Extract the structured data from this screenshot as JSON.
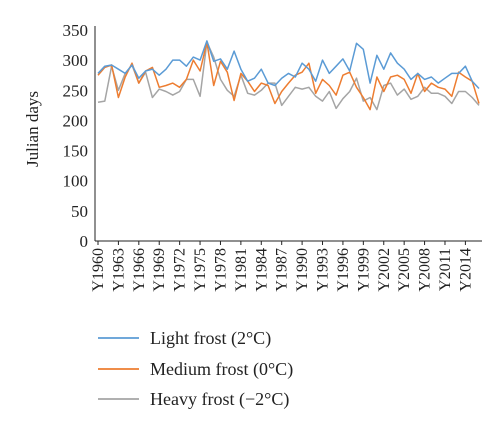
{
  "chart_data": {
    "type": "line",
    "title": "",
    "xlabel": "",
    "ylabel": "Julian days",
    "ylim": [
      0,
      350
    ],
    "yticks": [
      0,
      50,
      100,
      150,
      200,
      250,
      300,
      350
    ],
    "x": [
      "Y1960",
      "Y1961",
      "Y1962",
      "Y1963",
      "Y1964",
      "Y1965",
      "Y1966",
      "Y1967",
      "Y1968",
      "Y1969",
      "Y1970",
      "Y1971",
      "Y1972",
      "Y1973",
      "Y1974",
      "Y1975",
      "Y1976",
      "Y1977",
      "Y1978",
      "Y1979",
      "Y1980",
      "Y1981",
      "Y1982",
      "Y1983",
      "Y1984",
      "Y1985",
      "Y1986",
      "Y1987",
      "Y1988",
      "Y1989",
      "Y1990",
      "Y1991",
      "Y1992",
      "Y1993",
      "Y1994",
      "Y1995",
      "Y1996",
      "Y1997",
      "Y1998",
      "Y1999",
      "Y2000",
      "Y2001",
      "Y2002",
      "Y2003",
      "Y2004",
      "Y2005",
      "Y2006",
      "Y2007",
      "Y2008",
      "Y2009",
      "Y2010",
      "Y2011",
      "Y2012",
      "Y2013",
      "Y2014",
      "Y2015",
      "Y2016"
    ],
    "xtick_labels": [
      "Y1960",
      "Y1963",
      "Y1966",
      "Y1969",
      "Y1972",
      "Y1975",
      "Y1978",
      "Y1981",
      "Y1984",
      "Y1987",
      "Y1990",
      "Y1993",
      "Y1996",
      "Y1999",
      "Y2002",
      "Y2005",
      "Y2008",
      "Y2011",
      "Y2014"
    ],
    "grid": false,
    "legend_position": "bottom",
    "series": [
      {
        "name": "Light frost (2°C)",
        "color": "#5b9bd5",
        "values": [
          278,
          290,
          292,
          285,
          278,
          292,
          270,
          282,
          285,
          275,
          285,
          300,
          300,
          290,
          305,
          300,
          332,
          298,
          302,
          285,
          315,
          285,
          265,
          270,
          285,
          262,
          258,
          270,
          278,
          272,
          295,
          285,
          265,
          300,
          278,
          290,
          302,
          282,
          328,
          318,
          262,
          308,
          285,
          312,
          295,
          285,
          268,
          278,
          268,
          272,
          262,
          270,
          278,
          278,
          290,
          265,
          253
        ]
      },
      {
        "name": "Medium frost (0°C)",
        "color": "#ed7d31",
        "values": [
          275,
          288,
          292,
          238,
          272,
          295,
          262,
          282,
          288,
          255,
          258,
          262,
          255,
          268,
          300,
          282,
          330,
          258,
          298,
          280,
          233,
          278,
          265,
          248,
          262,
          258,
          228,
          248,
          262,
          275,
          280,
          295,
          245,
          268,
          258,
          242,
          275,
          280,
          255,
          238,
          218,
          272,
          248,
          272,
          275,
          268,
          245,
          278,
          248,
          262,
          255,
          252,
          240,
          280,
          272,
          265,
          228
        ]
      },
      {
        "name": "Heavy frost (−2°C)",
        "color": "#a5a5a5",
        "values": [
          230,
          232,
          290,
          250,
          278,
          292,
          262,
          280,
          238,
          252,
          248,
          242,
          248,
          268,
          268,
          240,
          330,
          305,
          268,
          250,
          240,
          275,
          245,
          242,
          250,
          262,
          262,
          225,
          240,
          255,
          252,
          255,
          240,
          232,
          248,
          220,
          236,
          248,
          270,
          232,
          238,
          218,
          258,
          262,
          242,
          252,
          235,
          240,
          255,
          245,
          245,
          240,
          228,
          248,
          248,
          238,
          225
        ]
      }
    ]
  }
}
